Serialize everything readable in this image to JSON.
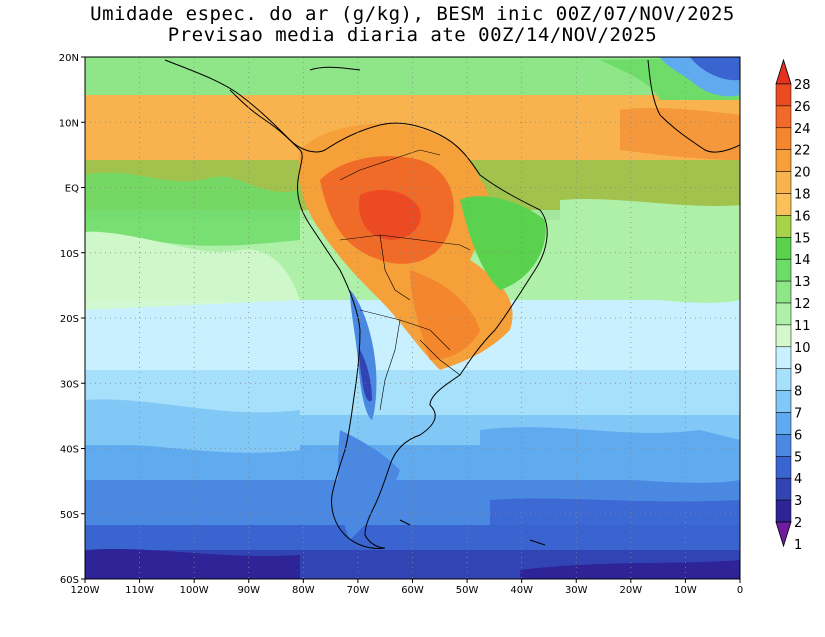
{
  "title_line1": "Umidade espec. do ar (g/kg), BESM inic 00Z/07/NOV/2025",
  "title_line2": "Previsao media diaria ate 00Z/14/NOV/2025",
  "lat_labels": [
    "20N",
    "10N",
    "EQ",
    "10S",
    "20S",
    "30S",
    "40S",
    "50S",
    "60S"
  ],
  "lon_labels": [
    "120W",
    "110W",
    "100W",
    "90W",
    "80W",
    "70W",
    "60W",
    "50W",
    "40W",
    "30W",
    "20W",
    "10W",
    "0"
  ],
  "colorbar": {
    "labels": [
      "28",
      "26",
      "24",
      "22",
      "20",
      "18",
      "16",
      "15",
      "14",
      "13",
      "12",
      "11",
      "10",
      "9",
      "8",
      "7",
      "6",
      "5",
      "4",
      "3",
      "2",
      "1"
    ],
    "colors": [
      "#e53020",
      "#ec4a22",
      "#f06a28",
      "#f4862e",
      "#f6a03a",
      "#f8b24e",
      "#fac05a",
      "#a8d24a",
      "#5ad24e",
      "#6edc68",
      "#8ee688",
      "#aef0a8",
      "#d2f8cc",
      "#c8f0ff",
      "#a6e0fa",
      "#82c8f6",
      "#60aaf0",
      "#4a88e2",
      "#3a64d0",
      "#3244b4",
      "#2e2498",
      "#6e1ca0"
    ]
  },
  "legend_fields": {
    "tropics": "high moisture (18-24 g/kg) over Amazon basin",
    "south": "low moisture (2-6 g/kg) south of 40S"
  }
}
